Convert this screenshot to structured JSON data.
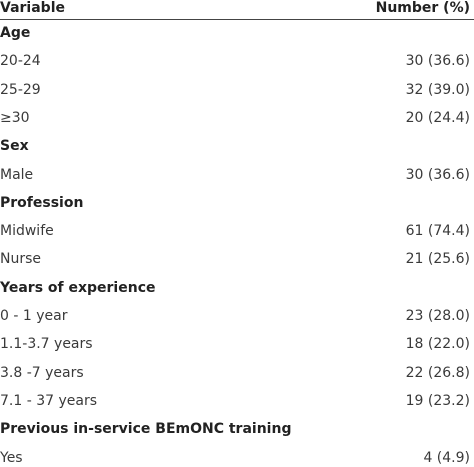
{
  "table": {
    "header": [
      "Variable",
      "Number (%)"
    ],
    "groups": [
      {
        "title": "Age",
        "rows": [
          [
            "20-24",
            "30 (36.6)"
          ],
          [
            "25-29",
            "32 (39.0)"
          ],
          [
            "≥30",
            "20 (24.4)"
          ]
        ]
      },
      {
        "title": "Sex",
        "rows": [
          [
            "Male",
            "30 (36.6)"
          ]
        ]
      },
      {
        "title": "Profession",
        "rows": [
          [
            "Midwife",
            "61 (74.4)"
          ],
          [
            "Nurse",
            "21 (25.6)"
          ]
        ]
      },
      {
        "title": "Years of experience",
        "rows": [
          [
            "0 - 1 year",
            "23 (28.0)"
          ],
          [
            "1.1-3.7 years",
            "18 (22.0)"
          ],
          [
            "3.8 -7 years",
            "22 (26.8)"
          ],
          [
            "7.1 - 37 years",
            "19 (23.2)"
          ]
        ]
      },
      {
        "title": "Previous in-service BEmONC training",
        "rows": [
          [
            "Yes",
            "4 (4.9)"
          ]
        ]
      }
    ]
  }
}
